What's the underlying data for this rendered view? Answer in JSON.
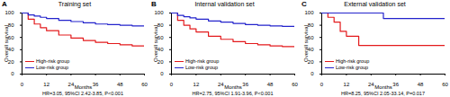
{
  "chart_data": [
    {
      "type": "line",
      "panel_label": "A",
      "title": "Training set",
      "x_label": "Months",
      "y_label": "Overall survival",
      "x": [
        0,
        3,
        6,
        9,
        12,
        18,
        24,
        30,
        36,
        42,
        48,
        54,
        60
      ],
      "series": [
        {
          "name": "High-risk group",
          "color": "#e31a1c",
          "values": [
            100,
            90,
            82,
            76,
            71,
            64,
            59,
            55,
            52,
            50,
            48,
            46,
            45
          ]
        },
        {
          "name": "Low-risk group",
          "color": "#2323cc",
          "values": [
            100,
            97,
            95,
            93,
            91,
            88,
            86,
            84,
            82,
            81,
            80,
            79,
            78
          ]
        }
      ],
      "xlim": [
        0,
        60
      ],
      "xticks": [
        0,
        12,
        24,
        36,
        48,
        60
      ],
      "ylim": [
        0,
        100
      ],
      "yticks": [
        0,
        20,
        40,
        60,
        80,
        100
      ],
      "annotations": [
        "HR=3.05, 95%CI 2.42-3.85, P<0.001"
      ],
      "legend": "bottom-left",
      "line_style": "step"
    },
    {
      "type": "line",
      "panel_label": "B",
      "title": "Internal validation set",
      "x_label": "Months",
      "y_label": "Overall survival",
      "x": [
        0,
        3,
        6,
        9,
        12,
        18,
        24,
        30,
        36,
        42,
        48,
        54,
        60
      ],
      "series": [
        {
          "name": "High-risk group",
          "color": "#e31a1c",
          "values": [
            100,
            88,
            80,
            74,
            69,
            62,
            57,
            53,
            50,
            48,
            46,
            45,
            44
          ]
        },
        {
          "name": "Low-risk group",
          "color": "#2323cc",
          "values": [
            100,
            96,
            94,
            92,
            90,
            87,
            85,
            83,
            81,
            80,
            79,
            78,
            77
          ]
        }
      ],
      "xlim": [
        0,
        60
      ],
      "xticks": [
        0,
        12,
        24,
        36,
        48,
        60
      ],
      "ylim": [
        0,
        100
      ],
      "yticks": [
        0,
        20,
        40,
        60,
        80,
        100
      ],
      "annotations": [
        "HR=2.75, 95%CI 1.91-3.96, P<0.001"
      ],
      "legend": "bottom-left",
      "line_style": "step"
    },
    {
      "type": "line",
      "panel_label": "C",
      "title": "External validation set",
      "x_label": "Months",
      "y_label": "Overall survival",
      "x": [
        0,
        3,
        6,
        9,
        12,
        18,
        24,
        30,
        36,
        42,
        48,
        54,
        60
      ],
      "series": [
        {
          "name": "High-risk group",
          "color": "#e31a1c",
          "values": [
            100,
            93,
            85,
            70,
            62,
            47,
            47,
            47,
            47,
            47,
            47,
            47,
            47
          ]
        },
        {
          "name": "Low-risk group",
          "color": "#2323cc",
          "values": [
            100,
            100,
            100,
            100,
            100,
            100,
            100,
            91,
            91,
            91,
            91,
            91,
            91
          ]
        }
      ],
      "xlim": [
        0,
        60
      ],
      "xticks": [
        0,
        12,
        24,
        36,
        48,
        60
      ],
      "ylim": [
        0,
        100
      ],
      "yticks": [
        0,
        20,
        40,
        60,
        80,
        100
      ],
      "annotations": [
        "HR=8.25, 95%CI 2.05-33.14, P=0.017"
      ],
      "legend": "bottom-left",
      "line_style": "step"
    }
  ]
}
